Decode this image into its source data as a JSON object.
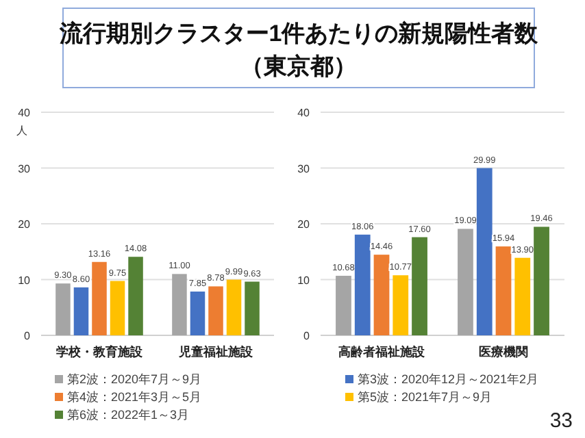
{
  "chart_data": [
    {
      "type": "bar",
      "title": "流行期別クラスター1件あたりの新規陽性者数",
      "subtitle": "（東京都）",
      "ylabel": "人",
      "categories": [
        "学校・教育施設",
        "児童福祉施設"
      ],
      "ylim": [
        0,
        40
      ],
      "yticks": [
        0,
        10,
        20,
        30,
        40
      ],
      "grid": "y",
      "legend": "bottom",
      "series": [
        {
          "name": "第2波：2020年7月～9月",
          "color": "#a5a5a5",
          "values": [
            9.3,
            11.0
          ],
          "value_labels": [
            "9.30",
            "11.00"
          ]
        },
        {
          "name": "第3波：2020年12月～2021年2月",
          "color": "#4472c4",
          "values": [
            8.6,
            7.85
          ],
          "value_labels": [
            "8.60",
            "7.85"
          ]
        },
        {
          "name": "第4波：2021年3月～5月",
          "color": "#ed7d31",
          "values": [
            13.16,
            8.78
          ],
          "value_labels": [
            "13.16",
            "8.78"
          ]
        },
        {
          "name": "第5波：2021年7月～9月",
          "color": "#ffc000",
          "values": [
            9.75,
            9.99
          ],
          "value_labels": [
            "9.75",
            "9.99"
          ]
        },
        {
          "name": "第6波：2022年1～3月",
          "color": "#548235",
          "values": [
            14.08,
            9.63
          ],
          "value_labels": [
            "14.08",
            "9.63"
          ]
        }
      ]
    },
    {
      "type": "bar",
      "categories": [
        "高齢者福祉施設",
        "医療機関"
      ],
      "ylim": [
        0,
        40
      ],
      "yticks": [
        0,
        10,
        20,
        30,
        40
      ],
      "grid": "y",
      "annotations": [
        "33"
      ],
      "series": [
        {
          "color": "#a5a5a5",
          "values": [
            10.68,
            19.09
          ],
          "value_labels": [
            "10.68",
            "19.09"
          ]
        },
        {
          "color": "#4472c4",
          "values": [
            18.06,
            29.99
          ],
          "value_labels": [
            "18.06",
            "29.99"
          ]
        },
        {
          "color": "#ed7d31",
          "values": [
            14.46,
            15.94
          ],
          "value_labels": [
            "14.46",
            "15.94"
          ]
        },
        {
          "color": "#ffc000",
          "values": [
            10.77,
            13.9
          ],
          "value_labels": [
            "10.77",
            "13.90"
          ]
        },
        {
          "color": "#548235",
          "values": [
            17.6,
            19.46
          ],
          "value_labels": [
            "17.60",
            "19.46"
          ]
        }
      ]
    }
  ]
}
